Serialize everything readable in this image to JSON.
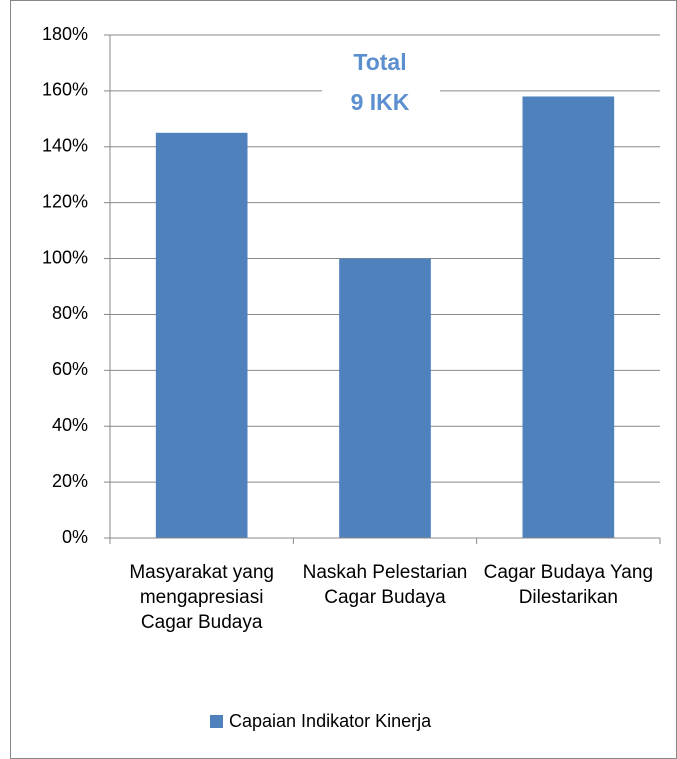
{
  "chart_data": {
    "type": "bar",
    "categories": [
      "Masyarakat yang mengapresiasi Cagar Budaya",
      "Naskah Pelestarian Cagar Budaya",
      "Cagar Budaya Yang Dilestarikan"
    ],
    "series": [
      {
        "name": "Capaian Indikator Kinerja",
        "color": "#4f81bd",
        "values": [
          145,
          100,
          158
        ]
      }
    ],
    "annotation": [
      "Total",
      "9 IKK"
    ],
    "ylim": [
      0,
      180
    ],
    "yticks": [
      {
        "value": 0,
        "label": "0%"
      },
      {
        "value": 20,
        "label": "20%"
      },
      {
        "value": 40,
        "label": "40%"
      },
      {
        "value": 60,
        "label": "60%"
      },
      {
        "value": 80,
        "label": "80%"
      },
      {
        "value": 100,
        "label": "100%"
      },
      {
        "value": 120,
        "label": "120%"
      },
      {
        "value": 140,
        "label": "140%"
      },
      {
        "value": 160,
        "label": "160%"
      },
      {
        "value": 180,
        "label": "180%"
      }
    ],
    "grid": true,
    "legend": "bottom"
  }
}
